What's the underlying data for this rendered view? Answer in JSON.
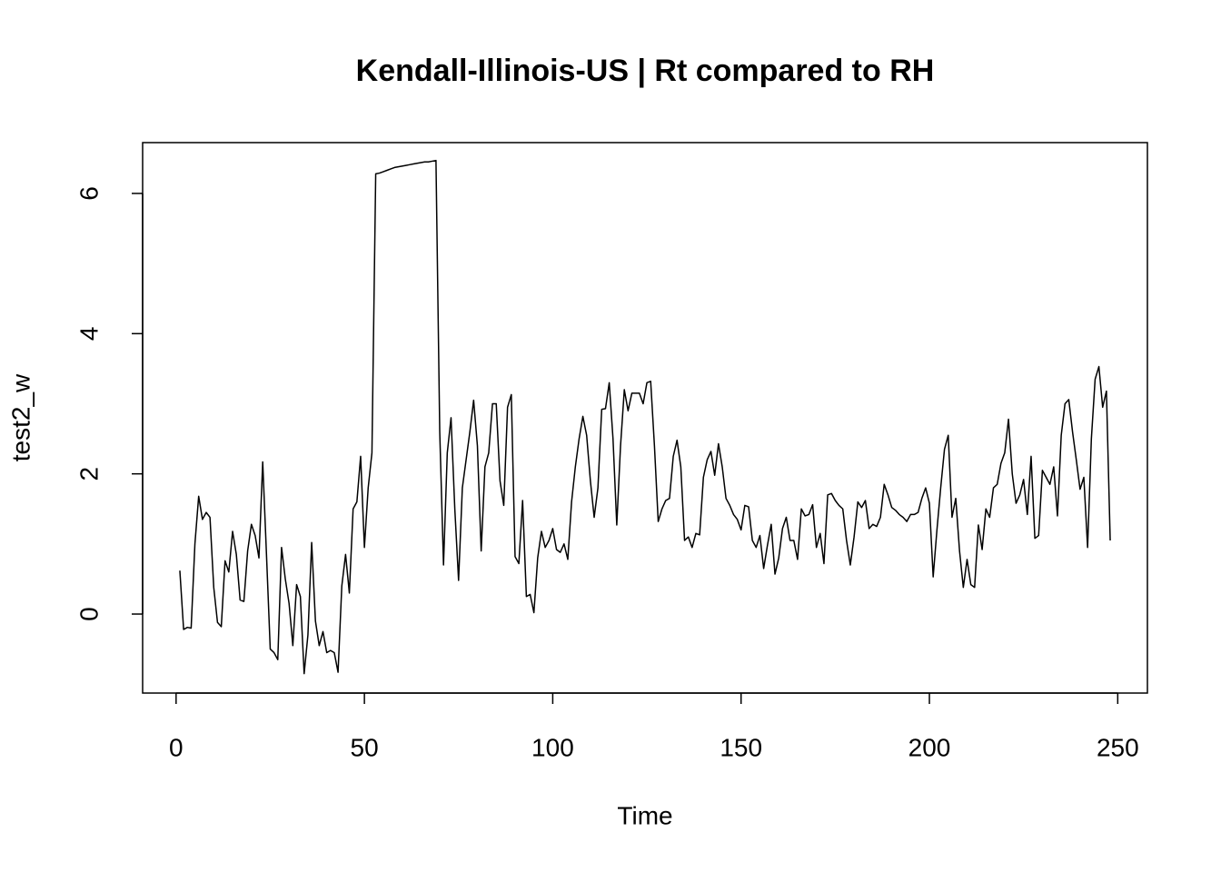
{
  "chart_data": {
    "type": "line",
    "title": "Kendall-Illinois-US | Rt compared to RH",
    "xlabel": "Time",
    "ylabel": "test2_w",
    "x": [
      1,
      2,
      3,
      4,
      5,
      6,
      7,
      8,
      9,
      10,
      11,
      12,
      13,
      14,
      15,
      16,
      17,
      18,
      19,
      20,
      21,
      22,
      23,
      24,
      25,
      26,
      27,
      28,
      29,
      30,
      31,
      32,
      33,
      34,
      35,
      36,
      37,
      38,
      39,
      40,
      41,
      42,
      43,
      44,
      45,
      46,
      47,
      48,
      49,
      50,
      51,
      52,
      53,
      54,
      55,
      56,
      57,
      58,
      59,
      60,
      61,
      62,
      63,
      64,
      65,
      66,
      67,
      68,
      69,
      70,
      71,
      72,
      73,
      74,
      75,
      76,
      77,
      78,
      79,
      80,
      81,
      82,
      83,
      84,
      85,
      86,
      87,
      88,
      89,
      90,
      91,
      92,
      93,
      94,
      95,
      96,
      97,
      98,
      99,
      100,
      101,
      102,
      103,
      104,
      105,
      106,
      107,
      108,
      109,
      110,
      111,
      112,
      113,
      114,
      115,
      116,
      117,
      118,
      119,
      120,
      121,
      122,
      123,
      124,
      125,
      126,
      127,
      128,
      129,
      130,
      131,
      132,
      133,
      134,
      135,
      136,
      137,
      138,
      139,
      140,
      141,
      142,
      143,
      144,
      145,
      146,
      147,
      148,
      149,
      150,
      151,
      152,
      153,
      154,
      155,
      156,
      157,
      158,
      159,
      160,
      161,
      162,
      163,
      164,
      165,
      166,
      167,
      168,
      169,
      170,
      171,
      172,
      173,
      174,
      175,
      176,
      177,
      178,
      179,
      180,
      181,
      182,
      183,
      184,
      185,
      186,
      187,
      188,
      189,
      190,
      191,
      192,
      193,
      194,
      195,
      196,
      197,
      198,
      199,
      200,
      201,
      202,
      203,
      204,
      205,
      206,
      207,
      208,
      209,
      210,
      211,
      212,
      213,
      214,
      215,
      216,
      217,
      218,
      219,
      220,
      221,
      222,
      223,
      224,
      225,
      226,
      227,
      228,
      229,
      230,
      231,
      232,
      233,
      234,
      235,
      236,
      237,
      238,
      239,
      240,
      241,
      242,
      243,
      244,
      245,
      246,
      247,
      248
    ],
    "series": [
      {
        "color": "#000000",
        "values": [
          0.62,
          -0.22,
          -0.19,
          -0.2,
          1.0,
          1.68,
          1.35,
          1.45,
          1.38,
          0.38,
          -0.12,
          -0.18,
          0.76,
          0.6,
          1.18,
          0.85,
          0.2,
          0.18,
          0.9,
          1.28,
          1.12,
          0.8,
          2.17,
          0.85,
          -0.5,
          -0.55,
          -0.65,
          0.95,
          0.5,
          0.15,
          -0.45,
          0.42,
          0.25,
          -0.85,
          -0.3,
          1.02,
          -0.1,
          -0.45,
          -0.25,
          -0.55,
          -0.52,
          -0.55,
          -0.83,
          0.4,
          0.85,
          0.3,
          1.5,
          1.6,
          2.25,
          0.95,
          1.8,
          2.3,
          6.28,
          6.29,
          6.31,
          6.33,
          6.35,
          6.37,
          6.38,
          6.39,
          6.4,
          6.41,
          6.42,
          6.43,
          6.44,
          6.45,
          6.45,
          6.46,
          6.47,
          2.6,
          0.7,
          2.3,
          2.8,
          1.5,
          0.48,
          1.8,
          2.2,
          2.6,
          3.05,
          2.4,
          0.9,
          2.1,
          2.3,
          3.0,
          3.0,
          1.9,
          1.55,
          2.95,
          3.13,
          0.82,
          0.72,
          1.62,
          0.25,
          0.28,
          0.02,
          0.8,
          1.18,
          0.95,
          1.05,
          1.22,
          0.92,
          0.88,
          1.0,
          0.78,
          1.6,
          2.1,
          2.5,
          2.82,
          2.55,
          1.9,
          1.38,
          1.8,
          2.92,
          2.93,
          3.3,
          2.5,
          1.27,
          2.4,
          3.2,
          2.9,
          3.15,
          3.15,
          3.15,
          3.0,
          3.3,
          3.32,
          2.4,
          1.32,
          1.5,
          1.62,
          1.65,
          2.25,
          2.48,
          2.1,
          1.05,
          1.1,
          0.95,
          1.15,
          1.13,
          1.95,
          2.2,
          2.32,
          1.98,
          2.43,
          2.1,
          1.65,
          1.55,
          1.42,
          1.35,
          1.2,
          1.55,
          1.53,
          1.05,
          0.95,
          1.12,
          0.65,
          0.98,
          1.28,
          0.57,
          0.8,
          1.22,
          1.38,
          1.05,
          1.05,
          0.78,
          1.5,
          1.4,
          1.42,
          1.56,
          0.95,
          1.15,
          0.72,
          1.7,
          1.72,
          1.62,
          1.55,
          1.5,
          1.05,
          0.7,
          1.1,
          1.6,
          1.52,
          1.62,
          1.22,
          1.28,
          1.25,
          1.38,
          1.85,
          1.7,
          1.52,
          1.48,
          1.42,
          1.38,
          1.32,
          1.42,
          1.42,
          1.45,
          1.65,
          1.8,
          1.58,
          0.53,
          1.2,
          1.8,
          2.35,
          2.55,
          1.38,
          1.65,
          0.9,
          0.38,
          0.78,
          0.42,
          0.38,
          1.27,
          0.92,
          1.5,
          1.38,
          1.8,
          1.85,
          2.15,
          2.3,
          2.78,
          2.0,
          1.58,
          1.7,
          1.92,
          1.42,
          2.25,
          1.08,
          1.12,
          2.05,
          1.95,
          1.85,
          2.1,
          1.4,
          2.55,
          3.0,
          3.06,
          2.6,
          2.2,
          1.78,
          1.95,
          0.95,
          2.5,
          3.35,
          3.53,
          2.95,
          3.18,
          1.05
        ]
      }
    ],
    "xlim": [
      -8.88,
      257.88
    ],
    "ylim": [
      -1.127,
      6.725
    ],
    "xticks": [
      0,
      50,
      100,
      150,
      200,
      250
    ],
    "yticks": [
      0,
      2,
      4,
      6
    ]
  }
}
